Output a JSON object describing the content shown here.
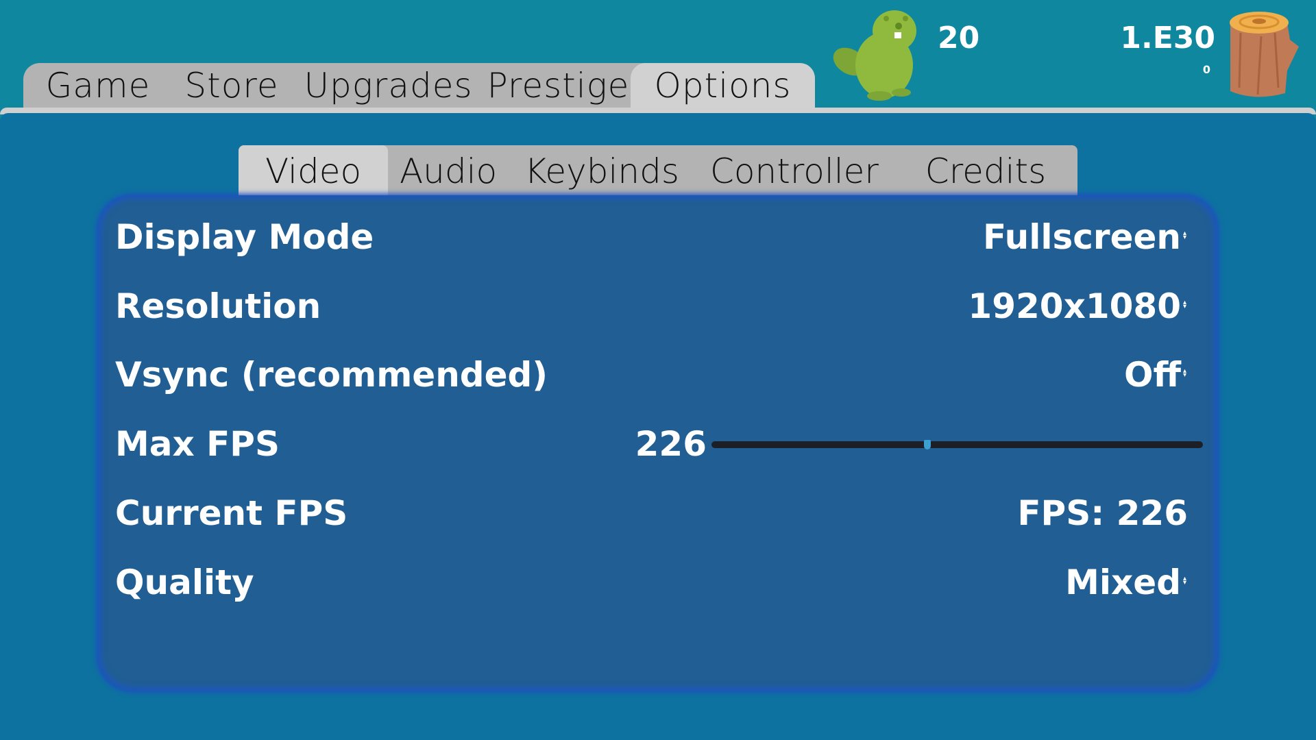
{
  "top_tabs": [
    "Game",
    "Store",
    "Upgrades",
    "Prestige",
    "Options"
  ],
  "active_top_tab": "Options",
  "stats": {
    "beavers": "20",
    "wood": "1.E30",
    "wood_rate": "0"
  },
  "sub_tabs": [
    "Video",
    "Audio",
    "Keybinds",
    "Controller",
    "Credits"
  ],
  "active_sub_tab": "Video",
  "settings": {
    "display_mode": {
      "label": "Display Mode",
      "value": "Fullscreen"
    },
    "resolution": {
      "label": "Resolution",
      "value": "1920x1080"
    },
    "vsync": {
      "label": "Vsync (recommended)",
      "value": "Off"
    },
    "max_fps": {
      "label": "Max FPS",
      "value": "226",
      "slider_fraction": 0.44
    },
    "current_fps": {
      "label": "Current FPS",
      "value": "FPS: 226"
    },
    "quality": {
      "label": "Quality",
      "value": "Mixed"
    }
  },
  "colors": {
    "background": "#0f889f",
    "main": "#0e72a0",
    "panel": "#205e93",
    "tab": "#b3b3b3",
    "tab_active": "#d1d1d1",
    "beaver": "#8fba3e",
    "log": "#c07a55"
  }
}
